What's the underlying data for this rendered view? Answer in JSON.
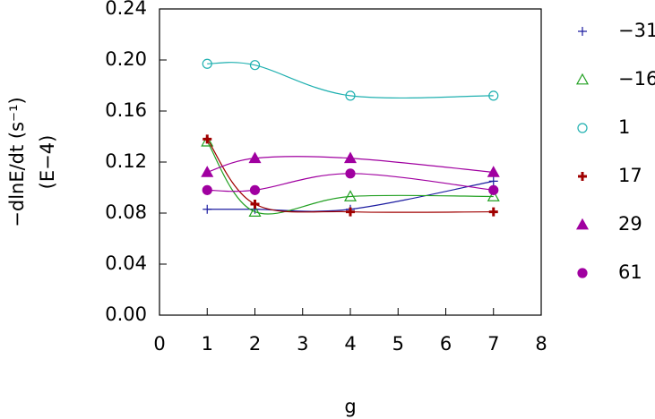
{
  "chart_data": {
    "type": "line",
    "y_label": "−dlnE/dt  (s⁻¹)",
    "y_label_unit": "(E−4)",
    "x_label": "g",
    "x": [
      1,
      2,
      4,
      7
    ],
    "xlim": [
      0,
      8
    ],
    "xticks": [
      0,
      1,
      2,
      3,
      4,
      5,
      6,
      7,
      8
    ],
    "ylim": [
      0,
      0.24
    ],
    "yticks": [
      {
        "value": 0,
        "label": "0.00"
      },
      {
        "value": 0.04,
        "label": "0.04"
      },
      {
        "value": 0.08,
        "label": "0.08"
      },
      {
        "value": 0.12,
        "label": "0.12"
      },
      {
        "value": 0.16,
        "label": "0.16"
      },
      {
        "value": 0.2,
        "label": "0.20"
      },
      {
        "value": 0.24,
        "label": "0.24"
      }
    ],
    "series": [
      {
        "name": "−31",
        "color": "#1c1ca0",
        "marker": "plus",
        "filled": false,
        "values": [
          0.083,
          0.083,
          0.083,
          0.105
        ]
      },
      {
        "name": "−16",
        "color": "#22a022",
        "marker": "triangle",
        "filled": false,
        "values": [
          0.136,
          0.081,
          0.093,
          0.093
        ]
      },
      {
        "name": "1",
        "color": "#1fb0b0",
        "marker": "circle",
        "filled": false,
        "values": [
          0.197,
          0.196,
          0.172,
          0.172
        ]
      },
      {
        "name": "17",
        "color": "#a00000",
        "marker": "plus",
        "filled": true,
        "values": [
          0.138,
          0.087,
          0.081,
          0.081
        ]
      },
      {
        "name": "29",
        "color": "#a000a0",
        "marker": "triangle",
        "filled": true,
        "values": [
          0.112,
          0.123,
          0.123,
          0.112
        ]
      },
      {
        "name": "61",
        "color": "#a000a0",
        "marker": "circle",
        "filled": true,
        "values": [
          0.098,
          0.098,
          0.111,
          0.098
        ]
      }
    ]
  }
}
